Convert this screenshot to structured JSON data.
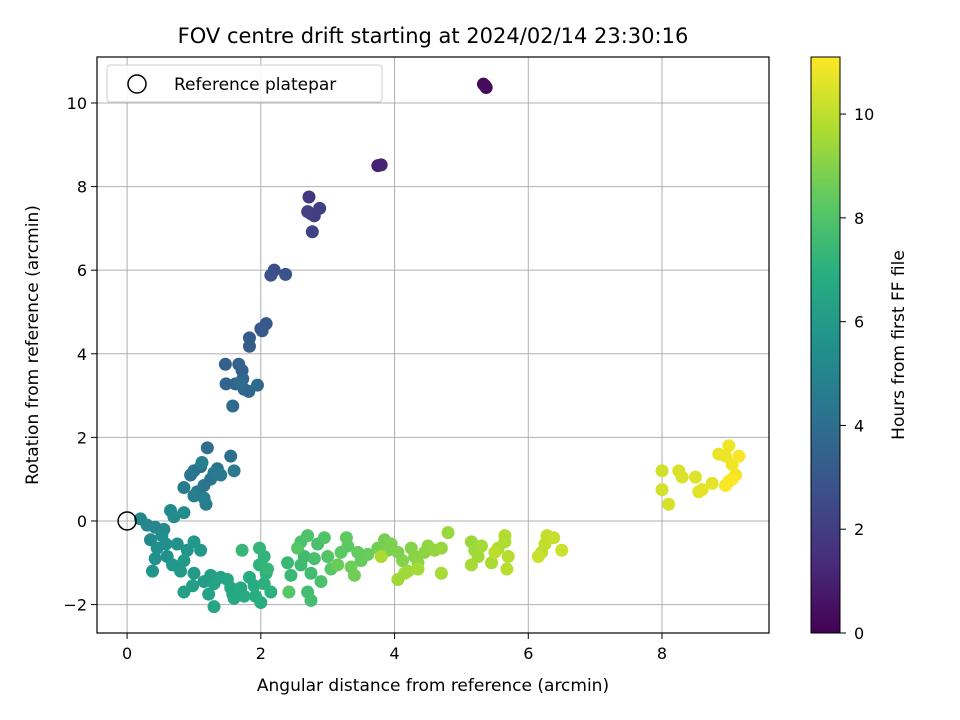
{
  "chart_data": {
    "type": "scatter",
    "title": "FOV centre drift starting at 2024/02/14 23:30:16",
    "xlabel": "Angular distance from reference (arcmin)",
    "ylabel": "Rotation from reference (arcmin)",
    "xlim": [
      -0.45,
      9.6
    ],
    "ylim": [
      -2.68,
      11.1
    ],
    "xticks": [
      0,
      2,
      4,
      6,
      8
    ],
    "yticks": [
      -2,
      0,
      2,
      4,
      6,
      8,
      10
    ],
    "grid": true,
    "legend": {
      "placement": "upper-left",
      "entries": [
        "Reference platepar"
      ]
    },
    "reference_point": {
      "x": 0,
      "y": 0,
      "label": "Reference platepar"
    },
    "colorbar": {
      "label": "Hours from first FF file",
      "colormap": "viridis",
      "range": [
        0,
        11.1
      ],
      "ticks": [
        0,
        2,
        4,
        6,
        8,
        10
      ]
    },
    "points": [
      [
        5.33,
        10.45,
        0.1
      ],
      [
        5.37,
        10.37,
        0.2
      ],
      [
        5.35,
        10.42,
        0.3
      ],
      [
        3.75,
        8.5,
        1.0
      ],
      [
        3.8,
        8.52,
        1.1
      ],
      [
        2.72,
        7.75,
        1.8
      ],
      [
        2.75,
        7.35,
        1.9
      ],
      [
        2.8,
        7.3,
        2.0
      ],
      [
        2.88,
        7.48,
        2.05
      ],
      [
        2.7,
        7.4,
        2.1
      ],
      [
        2.77,
        6.92,
        2.2
      ],
      [
        2.2,
        6.0,
        2.6
      ],
      [
        2.15,
        5.88,
        2.7
      ],
      [
        2.37,
        5.9,
        2.8
      ],
      [
        2.0,
        4.6,
        3.0
      ],
      [
        2.08,
        4.72,
        3.05
      ],
      [
        2.02,
        4.55,
        3.1
      ],
      [
        1.83,
        4.38,
        3.15
      ],
      [
        1.83,
        4.18,
        3.2
      ],
      [
        1.47,
        3.75,
        3.4
      ],
      [
        1.67,
        3.75,
        3.45
      ],
      [
        1.72,
        3.6,
        3.5
      ],
      [
        1.48,
        3.28,
        3.55
      ],
      [
        1.62,
        3.28,
        3.6
      ],
      [
        1.73,
        3.4,
        3.65
      ],
      [
        1.75,
        3.15,
        3.7
      ],
      [
        1.82,
        3.1,
        3.75
      ],
      [
        1.95,
        3.25,
        3.8
      ],
      [
        1.58,
        2.75,
        3.85
      ],
      [
        1.7,
        3.3,
        3.9
      ],
      [
        1.2,
        1.75,
        4.0
      ],
      [
        1.55,
        1.55,
        4.05
      ],
      [
        1.1,
        1.3,
        4.1
      ],
      [
        1.35,
        1.25,
        4.15
      ],
      [
        1.0,
        1.2,
        4.2
      ],
      [
        1.25,
        1.0,
        4.25
      ],
      [
        0.95,
        1.1,
        4.3
      ],
      [
        1.15,
        0.85,
        4.35
      ],
      [
        1.05,
        0.7,
        4.4
      ],
      [
        1.3,
        1.15,
        4.45
      ],
      [
        1.4,
        1.1,
        4.5
      ],
      [
        1.6,
        1.2,
        4.55
      ],
      [
        1.18,
        0.4,
        4.6
      ],
      [
        0.85,
        0.8,
        4.65
      ],
      [
        1.0,
        0.6,
        4.7
      ],
      [
        1.15,
        0.55,
        4.75
      ],
      [
        1.12,
        1.4,
        4.8
      ],
      [
        0.2,
        0.05,
        5.0
      ],
      [
        0.3,
        -0.1,
        5.05
      ],
      [
        0.42,
        -0.15,
        5.1
      ],
      [
        0.55,
        -0.2,
        5.15
      ],
      [
        0.35,
        -0.45,
        5.2
      ],
      [
        0.65,
        0.25,
        5.25
      ],
      [
        0.7,
        0.1,
        5.3
      ],
      [
        0.85,
        0.2,
        5.35
      ],
      [
        0.52,
        -0.35,
        5.4
      ],
      [
        0.58,
        -0.55,
        5.45
      ],
      [
        0.45,
        -0.65,
        5.5
      ],
      [
        0.6,
        -0.85,
        5.55
      ],
      [
        0.42,
        -0.9,
        5.6
      ],
      [
        0.75,
        -0.55,
        5.65
      ],
      [
        0.9,
        -0.7,
        5.7
      ],
      [
        0.38,
        -1.2,
        5.75
      ],
      [
        0.68,
        -1.05,
        5.8
      ],
      [
        1.0,
        -0.5,
        5.85
      ],
      [
        1.1,
        -0.7,
        5.9
      ],
      [
        0.85,
        -0.95,
        5.95
      ],
      [
        0.8,
        -1.2,
        6.0
      ],
      [
        1.0,
        -1.25,
        6.05
      ],
      [
        1.15,
        -1.45,
        6.1
      ],
      [
        0.98,
        -1.55,
        6.15
      ],
      [
        1.25,
        -1.3,
        6.2
      ],
      [
        0.85,
        -1.7,
        6.25
      ],
      [
        1.3,
        -1.5,
        6.3
      ],
      [
        1.4,
        -1.35,
        6.35
      ],
      [
        1.22,
        -1.75,
        6.4
      ],
      [
        1.3,
        -2.05,
        6.45
      ],
      [
        1.5,
        -1.4,
        6.5
      ],
      [
        1.55,
        -1.6,
        6.55
      ],
      [
        1.58,
        -1.75,
        6.6
      ],
      [
        1.6,
        -1.85,
        6.65
      ],
      [
        1.75,
        -1.8,
        6.7
      ],
      [
        1.7,
        -1.6,
        6.75
      ],
      [
        1.83,
        -1.35,
        6.8
      ],
      [
        1.9,
        -1.55,
        6.85
      ],
      [
        1.92,
        -1.8,
        6.9
      ],
      [
        2.0,
        -1.95,
        6.95
      ],
      [
        2.05,
        -1.5,
        7.0
      ],
      [
        2.15,
        -1.7,
        7.05
      ],
      [
        2.08,
        -1.25,
        7.1
      ],
      [
        1.98,
        -1.05,
        7.15
      ],
      [
        2.05,
        -0.85,
        7.2
      ],
      [
        1.98,
        -0.65,
        7.25
      ],
      [
        2.1,
        -1.15,
        7.3
      ],
      [
        1.72,
        -0.7,
        7.35
      ],
      [
        2.4,
        -1.0,
        7.4
      ],
      [
        2.45,
        -1.3,
        7.45
      ],
      [
        2.6,
        -1.05,
        7.5
      ],
      [
        2.65,
        -0.85,
        7.55
      ],
      [
        2.75,
        -1.25,
        7.6
      ],
      [
        2.7,
        -1.7,
        7.65
      ],
      [
        2.75,
        -1.9,
        7.7
      ],
      [
        2.8,
        -0.9,
        7.75
      ],
      [
        2.85,
        -0.55,
        7.8
      ],
      [
        2.9,
        -1.45,
        7.85
      ],
      [
        2.6,
        -0.5,
        7.9
      ],
      [
        2.7,
        -0.35,
        7.95
      ],
      [
        2.95,
        -0.4,
        8.0
      ],
      [
        3.0,
        -0.85,
        8.05
      ],
      [
        2.55,
        -0.65,
        8.1
      ],
      [
        2.42,
        -1.7,
        8.15
      ],
      [
        3.05,
        -1.15,
        8.2
      ],
      [
        3.2,
        -0.75,
        8.25
      ],
      [
        3.3,
        -0.6,
        8.3
      ],
      [
        3.28,
        -0.4,
        8.35
      ],
      [
        3.45,
        -0.75,
        8.4
      ],
      [
        3.5,
        -0.95,
        8.45
      ],
      [
        3.6,
        -0.8,
        8.5
      ],
      [
        3.15,
        -1.05,
        8.55
      ],
      [
        3.35,
        -1.1,
        8.6
      ],
      [
        3.4,
        -1.3,
        8.65
      ],
      [
        3.75,
        -0.65,
        8.7
      ],
      [
        3.85,
        -0.45,
        8.75
      ],
      [
        3.9,
        -0.7,
        8.8
      ],
      [
        3.95,
        -0.55,
        8.85
      ],
      [
        4.05,
        -0.75,
        8.9
      ],
      [
        4.12,
        -0.95,
        8.95
      ],
      [
        4.25,
        -0.65,
        9.0
      ],
      [
        4.3,
        -0.85,
        9.05
      ],
      [
        4.35,
        -1.0,
        9.1
      ],
      [
        4.45,
        -0.75,
        9.15
      ],
      [
        4.5,
        -0.6,
        9.2
      ],
      [
        4.6,
        -0.7,
        9.25
      ],
      [
        4.7,
        -0.65,
        9.3
      ],
      [
        4.8,
        -0.28,
        9.35
      ],
      [
        4.2,
        -1.2,
        9.4
      ],
      [
        4.05,
        -1.4,
        9.45
      ],
      [
        4.15,
        -1.25,
        9.5
      ],
      [
        4.35,
        -1.15,
        9.55
      ],
      [
        4.7,
        -1.25,
        9.6
      ],
      [
        3.8,
        -0.85,
        9.65
      ],
      [
        5.15,
        -0.5,
        9.4
      ],
      [
        5.2,
        -0.7,
        9.45
      ],
      [
        5.25,
        -0.85,
        9.5
      ],
      [
        5.3,
        -0.6,
        9.55
      ],
      [
        5.15,
        -1.05,
        9.6
      ],
      [
        5.45,
        -1.0,
        9.65
      ],
      [
        5.55,
        -0.65,
        9.7
      ],
      [
        5.65,
        -0.5,
        9.75
      ],
      [
        5.65,
        -0.35,
        9.8
      ],
      [
        5.7,
        -0.85,
        9.85
      ],
      [
        5.68,
        -1.15,
        9.9
      ],
      [
        5.5,
        -0.75,
        9.95
      ],
      [
        6.2,
        -0.75,
        10.0
      ],
      [
        6.25,
        -0.55,
        10.05
      ],
      [
        6.28,
        -0.35,
        10.1
      ],
      [
        6.38,
        -0.4,
        10.15
      ],
      [
        6.15,
        -0.85,
        10.2
      ],
      [
        6.5,
        -0.7,
        10.25
      ],
      [
        8.0,
        1.2,
        10.3
      ],
      [
        8.0,
        0.75,
        10.35
      ],
      [
        8.1,
        0.4,
        10.4
      ],
      [
        8.25,
        1.2,
        10.45
      ],
      [
        8.3,
        1.05,
        10.5
      ],
      [
        8.5,
        1.05,
        10.55
      ],
      [
        8.55,
        0.7,
        10.6
      ],
      [
        8.6,
        0.75,
        10.65
      ],
      [
        8.75,
        0.9,
        10.7
      ],
      [
        8.85,
        1.6,
        10.75
      ],
      [
        8.95,
        1.55,
        10.8
      ],
      [
        9.0,
        1.8,
        10.85
      ],
      [
        9.05,
        1.35,
        10.9
      ],
      [
        9.1,
        1.1,
        10.95
      ],
      [
        9.15,
        1.55,
        11.0
      ],
      [
        9.0,
        0.95,
        11.02
      ],
      [
        8.95,
        0.85,
        11.05
      ],
      [
        9.05,
        1.0,
        11.08
      ]
    ]
  }
}
